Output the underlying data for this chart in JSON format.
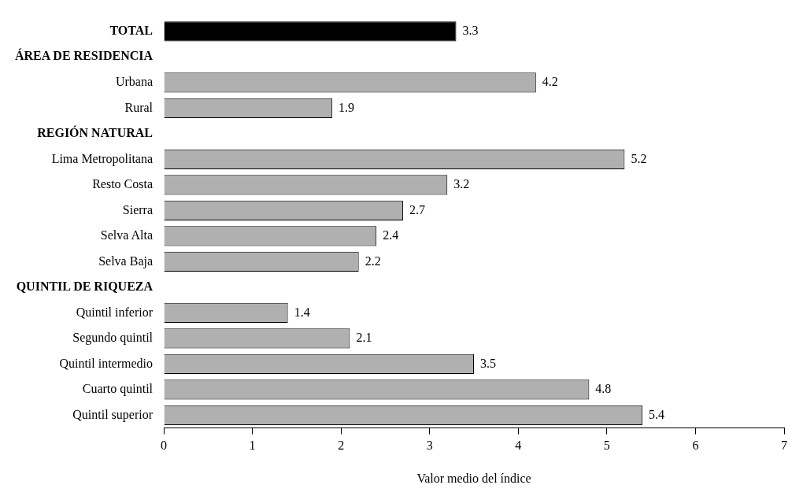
{
  "chart_data": {
    "type": "bar",
    "orientation": "horizontal",
    "xlabel": "Valor medio del índice",
    "categories": [
      "TOTAL",
      "ÁREA DE RESIDENCIA",
      "Urbana",
      "Rural",
      "REGIÓN NATURAL",
      "Lima Metropolitana",
      "Resto Costa",
      "Sierra",
      "Selva Alta",
      "Selva Baja",
      "QUINTIL DE RIQUEZA",
      "Quintil inferior",
      "Segundo quintil",
      "Quintil intermedio",
      "Cuarto quintil",
      "Quintil superior"
    ],
    "values": [
      3.3,
      null,
      4.2,
      1.9,
      null,
      5.2,
      3.2,
      2.7,
      2.4,
      2.2,
      null,
      1.4,
      2.1,
      3.5,
      4.8,
      5.4
    ],
    "colors": [
      "#000000",
      "#ffffff",
      "#b0b0b0",
      "#b0b0b0",
      "#ffffff",
      "#b0b0b0",
      "#b0b0b0",
      "#b0b0b0",
      "#b0b0b0",
      "#b0b0b0",
      "#ffffff",
      "#b0b0b0",
      "#b0b0b0",
      "#b0b0b0",
      "#b0b0b0",
      "#b0b0b0"
    ],
    "xlim": [
      0,
      7
    ],
    "xticks": [
      0,
      1,
      2,
      3,
      4,
      5,
      6,
      7
    ],
    "data_labels": true,
    "grid": false,
    "legend": false
  }
}
